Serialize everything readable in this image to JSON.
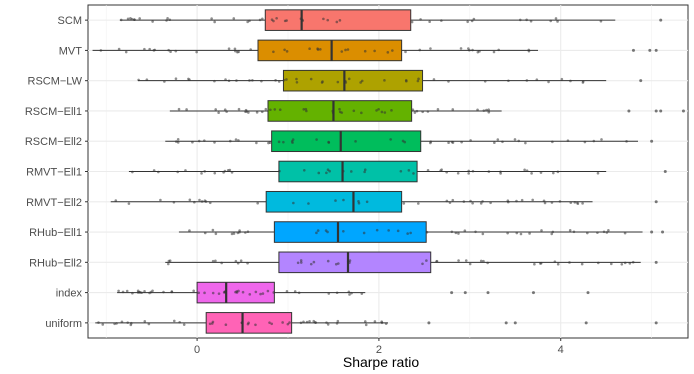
{
  "chart_data": {
    "type": "boxplot",
    "orientation": "horizontal",
    "xlabel": "Sharpe ratio",
    "xlim": [
      -1.2,
      5.4
    ],
    "x_ticks": [
      0,
      2,
      4
    ],
    "x_tick_labels": [
      "0",
      "2",
      "4"
    ],
    "grid": true,
    "categories": [
      "SCM",
      "MVT",
      "RSCM−LW",
      "RSCM−Ell1",
      "RSCM−Ell2",
      "RMVT−Ell1",
      "RMVT−Ell2",
      "RHub−Ell1",
      "RHub−Ell2",
      "index",
      "uniform"
    ],
    "series": [
      {
        "category": "SCM",
        "color": "#F8766D",
        "whisker_low": -0.85,
        "q1": 0.75,
        "median": 1.15,
        "q3": 2.35,
        "whisker_high": 4.6,
        "outliers": [
          5.1
        ]
      },
      {
        "category": "MVT",
        "color": "#DB8E00",
        "whisker_low": -1.15,
        "q1": 0.67,
        "median": 1.48,
        "q3": 2.25,
        "whisker_high": 3.75,
        "outliers": [
          4.8,
          4.98,
          5.05
        ]
      },
      {
        "category": "RSCM−LW",
        "color": "#AEA200",
        "whisker_low": -0.65,
        "q1": 0.95,
        "median": 1.62,
        "q3": 2.48,
        "whisker_high": 4.5,
        "outliers": [
          4.88
        ]
      },
      {
        "category": "RSCM−Ell1",
        "color": "#64B200",
        "whisker_low": -0.3,
        "q1": 0.78,
        "median": 1.5,
        "q3": 2.36,
        "whisker_high": 3.35,
        "outliers": [
          4.75,
          5.05,
          5.1,
          5.35
        ]
      },
      {
        "category": "RSCM−Ell2",
        "color": "#00BD5C",
        "whisker_low": -0.35,
        "q1": 0.82,
        "median": 1.58,
        "q3": 2.46,
        "whisker_high": 4.85,
        "outliers": [
          5.0
        ]
      },
      {
        "category": "RMVT−Ell1",
        "color": "#00C1A7",
        "whisker_low": -0.75,
        "q1": 0.9,
        "median": 1.6,
        "q3": 2.42,
        "whisker_high": 4.5,
        "outliers": [
          5.15
        ]
      },
      {
        "category": "RMVT−Ell2",
        "color": "#00BADE",
        "whisker_low": -0.95,
        "q1": 0.76,
        "median": 1.72,
        "q3": 2.25,
        "whisker_high": 4.35,
        "outliers": [
          5.05
        ]
      },
      {
        "category": "RHub−Ell1",
        "color": "#00A6FF",
        "whisker_low": -0.2,
        "q1": 0.85,
        "median": 1.55,
        "q3": 2.52,
        "whisker_high": 4.9,
        "outliers": [
          5.0,
          5.12
        ]
      },
      {
        "category": "RHub−Ell2",
        "color": "#B385FF",
        "whisker_low": -0.35,
        "q1": 0.9,
        "median": 1.66,
        "q3": 2.57,
        "whisker_high": 4.88,
        "outliers": [
          5.05
        ]
      },
      {
        "category": "index",
        "color": "#EF67EB",
        "whisker_low": -0.88,
        "q1": 0.0,
        "median": 0.32,
        "q3": 0.85,
        "whisker_high": 1.85,
        "outliers": [
          2.8,
          2.95,
          3.2,
          3.7,
          4.3
        ]
      },
      {
        "category": "uniform",
        "color": "#FF63B6",
        "whisker_low": -1.12,
        "q1": 0.1,
        "median": 0.5,
        "q3": 1.04,
        "whisker_high": 2.1,
        "outliers": [
          2.55,
          3.4,
          3.5,
          4.28,
          5.05
        ]
      }
    ]
  }
}
